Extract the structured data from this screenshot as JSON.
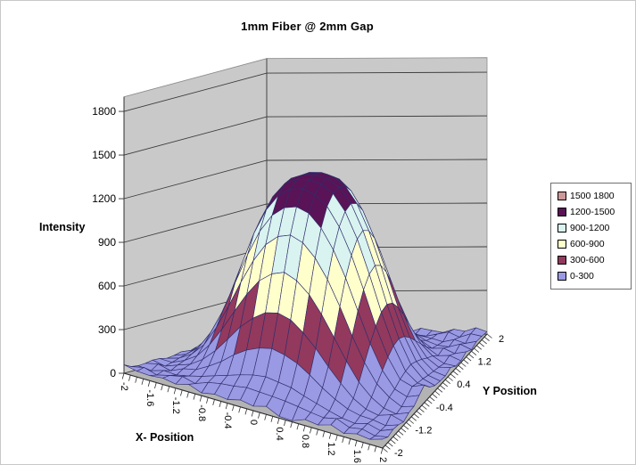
{
  "chart_data": {
    "type": "surface3d",
    "title": "1mm Fiber @ 2mm Gap",
    "x_label": "X- Position",
    "y_label": "Y Position",
    "z_label": "Intensity",
    "x_ticks": [
      "-2",
      "-1.6",
      "-1.2",
      "-0.8",
      "-0.4",
      "0",
      "0.4",
      "0.8",
      "1.2",
      "1.6",
      "2"
    ],
    "y_ticks": [
      "2",
      "1.2",
      "0.4",
      "-0.4",
      "-1.2",
      "-2"
    ],
    "z_ticks": [
      "0",
      "300",
      "600",
      "900",
      "1200",
      "1500",
      "1800"
    ],
    "x_range": [
      -2,
      2
    ],
    "y_range": [
      -2,
      2
    ],
    "z_range": [
      0,
      1800
    ],
    "x_step": 0.2,
    "y_step": 0.2,
    "grid": true,
    "legend_position": "right",
    "legend": [
      {
        "label": "1500 1800",
        "color": "#CC9898"
      },
      {
        "label": "1200-1500",
        "color": "#591356"
      },
      {
        "label": "900-1200",
        "color": "#D9F3F0"
      },
      {
        "label": "600-900",
        "color": "#FFFFCC"
      },
      {
        "label": "300-600",
        "color": "#93395E"
      },
      {
        "label": "0-300",
        "color": "#9A99E3"
      }
    ],
    "bands": [
      {
        "min": 0,
        "max": 300,
        "color": "#9A99E3"
      },
      {
        "min": 300,
        "max": 600,
        "color": "#93395E"
      },
      {
        "min": 600,
        "max": 900,
        "color": "#FFFFCC"
      },
      {
        "min": 900,
        "max": 1200,
        "color": "#D9F3F0"
      },
      {
        "min": 1200,
        "max": 1500,
        "color": "#591356"
      },
      {
        "min": 1500,
        "max": 1800,
        "color": "#CC9898"
      }
    ],
    "colors": {
      "wall": "#C9C9C9",
      "wall_edge": "#8A8A8A",
      "floor": "#B3B3B3",
      "mesh": "#2E2E6B",
      "grid": "#3C3C3C",
      "axis": "#303030"
    },
    "values": [
      [
        58,
        40,
        35,
        44,
        28,
        52,
        19,
        36,
        25,
        48,
        31,
        55,
        12,
        8,
        42,
        30,
        57,
        23,
        46,
        34,
        61
      ],
      [
        33,
        51,
        24,
        45,
        62,
        38,
        70,
        86,
        94,
        108,
        102,
        96,
        88,
        75,
        59,
        47,
        66,
        29,
        43,
        20,
        37
      ],
      [
        26,
        14,
        39,
        31,
        47,
        68,
        95,
        121,
        148,
        170,
        181,
        166,
        152,
        118,
        89,
        60,
        35,
        22,
        44,
        18,
        50
      ],
      [
        29,
        46,
        21,
        57,
        73,
        118,
        172,
        240,
        295,
        330,
        348,
        326,
        290,
        232,
        165,
        109,
        64,
        40,
        33,
        15,
        42
      ],
      [
        38,
        17,
        45,
        70,
        125,
        205,
        305,
        410,
        490,
        548,
        566,
        540,
        472,
        385,
        280,
        185,
        102,
        49,
        27,
        52,
        23
      ],
      [
        35,
        28,
        61,
        112,
        205,
        332,
        475,
        612,
        724,
        790,
        820,
        782,
        705,
        588,
        448,
        305,
        180,
        95,
        40,
        19,
        47
      ],
      [
        24,
        43,
        88,
        170,
        305,
        472,
        655,
        820,
        948,
        1022,
        1050,
        1015,
        928,
        798,
        630,
        445,
        280,
        152,
        78,
        31,
        52
      ],
      [
        30,
        55,
        118,
        238,
        405,
        615,
        822,
        1000,
        1125,
        1195,
        1218,
        1190,
        1105,
        972,
        795,
        585,
        378,
        210,
        98,
        62,
        88
      ],
      [
        42,
        70,
        150,
        292,
        495,
        725,
        950,
        1125,
        1240,
        1298,
        1315,
        1292,
        1225,
        1100,
        920,
        698,
        462,
        265,
        128,
        95,
        120
      ],
      [
        28,
        76,
        168,
        330,
        548,
        795,
        1025,
        1192,
        1298,
        1340,
        1352,
        1336,
        1285,
        1175,
        1000,
        772,
        525,
        308,
        148,
        80,
        66
      ],
      [
        45,
        82,
        195,
        345,
        568,
        818,
        1048,
        1215,
        1310,
        1348,
        1358,
        1345,
        1300,
        1200,
        1028,
        800,
        545,
        322,
        158,
        72,
        38
      ],
      [
        22,
        68,
        162,
        322,
        542,
        788,
        1018,
        1188,
        1295,
        1338,
        1349,
        1332,
        1280,
        1170,
        995,
        768,
        520,
        302,
        142,
        58,
        30
      ],
      [
        36,
        60,
        142,
        285,
        488,
        718,
        942,
        1118,
        1235,
        1295,
        1310,
        1288,
        1218,
        1092,
        912,
        690,
        455,
        258,
        120,
        48,
        25
      ],
      [
        18,
        48,
        110,
        228,
        398,
        608,
        815,
        992,
        1118,
        1190,
        1212,
        1185,
        1098,
        965,
        788,
        578,
        370,
        202,
        92,
        38,
        44
      ],
      [
        40,
        35,
        80,
        162,
        298,
        465,
        648,
        812,
        940,
        1015,
        1042,
        1008,
        920,
        790,
        622,
        438,
        272,
        145,
        70,
        25,
        15
      ],
      [
        27,
        20,
        55,
        105,
        198,
        325,
        468,
        605,
        718,
        782,
        812,
        775,
        698,
        580,
        440,
        298,
        172,
        88,
        35,
        42,
        12
      ],
      [
        15,
        42,
        38,
        65,
        118,
        198,
        298,
        402,
        482,
        540,
        558,
        532,
        465,
        378,
        272,
        178,
        95,
        44,
        50,
        18,
        35
      ],
      [
        32,
        12,
        28,
        50,
        68,
        110,
        165,
        232,
        288,
        322,
        340,
        318,
        282,
        225,
        158,
        102,
        58,
        30,
        22,
        45,
        10
      ],
      [
        20,
        38,
        15,
        35,
        52,
        75,
        98,
        115,
        142,
        162,
        172,
        158,
        145,
        112,
        82,
        55,
        40,
        18,
        36,
        12,
        28
      ],
      [
        44,
        16,
        32,
        48,
        22,
        55,
        38,
        62,
        70,
        58,
        75,
        66,
        52,
        45,
        30,
        20,
        35,
        50,
        15,
        40,
        24
      ],
      [
        12,
        30,
        22,
        40,
        18,
        35,
        28,
        15,
        32,
        24,
        38,
        20,
        30,
        16,
        42,
        26,
        12,
        34,
        20,
        44,
        16
      ]
    ]
  }
}
